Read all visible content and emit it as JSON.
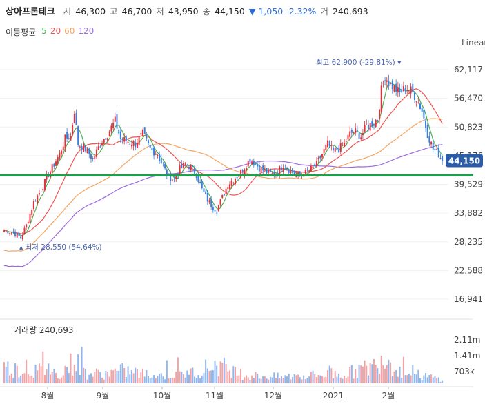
{
  "header": {
    "name": "상아프론테크",
    "open_label": "시",
    "open": "46,300",
    "high_label": "고",
    "high": "46,700",
    "low_label": "저",
    "low": "43,950",
    "close_label": "종",
    "close": "44,150",
    "change_arrow": "▼",
    "change": "1,050",
    "change_pct": "-2.32%",
    "volume_label": "거",
    "volume": "240,693"
  },
  "ma_legend": {
    "title": "이동평균",
    "items": [
      {
        "label": "5",
        "color": "#4caf50"
      },
      {
        "label": "20",
        "color": "#ef5350"
      },
      {
        "label": "60",
        "color": "#f4a460"
      },
      {
        "label": "120",
        "color": "#9c6ade"
      }
    ]
  },
  "scale_label": "Linear",
  "volume_panel": {
    "title": "거래량 240,693"
  },
  "colors": {
    "up": "#e0323c",
    "down": "#3b7ddd",
    "support_line": "#16a34a",
    "price_tag": "#2b5ca8"
  },
  "chart_data": {
    "type": "candlestick",
    "price_axis": {
      "min": 16941,
      "max": 62117,
      "ticks": [
        "62,117",
        "56,470",
        "50,823",
        "45,176",
        "39,529",
        "33,882",
        "28,235",
        "22,588",
        "16,941"
      ]
    },
    "volume_axis": {
      "ticks": [
        "2.11m",
        "1.41m",
        "703k"
      ]
    },
    "x_labels": [
      "8월",
      "9월",
      "10월",
      "11월",
      "12월",
      "2021",
      "2월"
    ],
    "current_price": "44,150",
    "high_annotation": "최고 62,900 (-29.81%)",
    "low_annotation": "최저 28,550 (54.64%)",
    "support_level": 41300,
    "close_path": [
      [
        0,
        30500
      ],
      [
        5,
        30000
      ],
      [
        9,
        29000
      ],
      [
        12,
        31500
      ],
      [
        16,
        36000
      ],
      [
        20,
        38500
      ],
      [
        24,
        41500
      ],
      [
        27,
        43500
      ],
      [
        30,
        45500
      ],
      [
        33,
        48500
      ],
      [
        36,
        49000
      ],
      [
        38,
        54000
      ],
      [
        40,
        47500
      ],
      [
        44,
        46500
      ],
      [
        48,
        44500
      ],
      [
        52,
        47500
      ],
      [
        56,
        49500
      ],
      [
        60,
        52000
      ],
      [
        63,
        48500
      ],
      [
        67,
        48000
      ],
      [
        71,
        47500
      ],
      [
        75,
        49500
      ],
      [
        79,
        46500
      ],
      [
        83,
        45500
      ],
      [
        86,
        43000
      ],
      [
        89,
        41000
      ],
      [
        92,
        40500
      ],
      [
        95,
        42500
      ],
      [
        98,
        43500
      ],
      [
        101,
        43000
      ],
      [
        104,
        41500
      ],
      [
        107,
        38500
      ],
      [
        110,
        36500
      ],
      [
        113,
        35000
      ],
      [
        115,
        34500
      ],
      [
        118,
        37000
      ],
      [
        121,
        39500
      ],
      [
        124,
        40500
      ],
      [
        127,
        41500
      ],
      [
        130,
        43000
      ],
      [
        133,
        44500
      ],
      [
        136,
        43500
      ],
      [
        139,
        42500
      ],
      [
        142,
        42000
      ],
      [
        145,
        41500
      ],
      [
        148,
        42000
      ],
      [
        151,
        43500
      ],
      [
        154,
        42500
      ],
      [
        157,
        41500
      ],
      [
        160,
        41200
      ],
      [
        163,
        41800
      ],
      [
        166,
        42500
      ],
      [
        169,
        43500
      ],
      [
        172,
        45500
      ],
      [
        175,
        47500
      ],
      [
        178,
        46000
      ],
      [
        181,
        46500
      ],
      [
        184,
        47500
      ],
      [
        187,
        49500
      ],
      [
        190,
        50000
      ],
      [
        193,
        49000
      ],
      [
        196,
        51000
      ],
      [
        199,
        51500
      ],
      [
        202,
        52500
      ],
      [
        204,
        58000
      ],
      [
        206,
        61000
      ],
      [
        208,
        59500
      ],
      [
        211,
        58500
      ],
      [
        214,
        57500
      ],
      [
        217,
        58500
      ],
      [
        220,
        58000
      ],
      [
        223,
        56500
      ],
      [
        226,
        54000
      ],
      [
        229,
        49500
      ],
      [
        232,
        46500
      ],
      [
        235,
        45500
      ],
      [
        237,
        44150
      ]
    ],
    "volume_path": [
      [
        0,
        0.5
      ],
      [
        10,
        0.4
      ],
      [
        20,
        0.4
      ],
      [
        30,
        0.3
      ],
      [
        38,
        0.7
      ],
      [
        45,
        0.3
      ],
      [
        55,
        0.3
      ],
      [
        65,
        0.4
      ],
      [
        80,
        0.25
      ],
      [
        100,
        0.3
      ],
      [
        115,
        0.6
      ],
      [
        130,
        0.25
      ],
      [
        150,
        0.2
      ],
      [
        165,
        0.25
      ],
      [
        185,
        0.3
      ],
      [
        200,
        0.55
      ],
      [
        205,
        0.9
      ],
      [
        215,
        0.35
      ],
      [
        230,
        0.2
      ],
      [
        237,
        0.12
      ]
    ]
  }
}
